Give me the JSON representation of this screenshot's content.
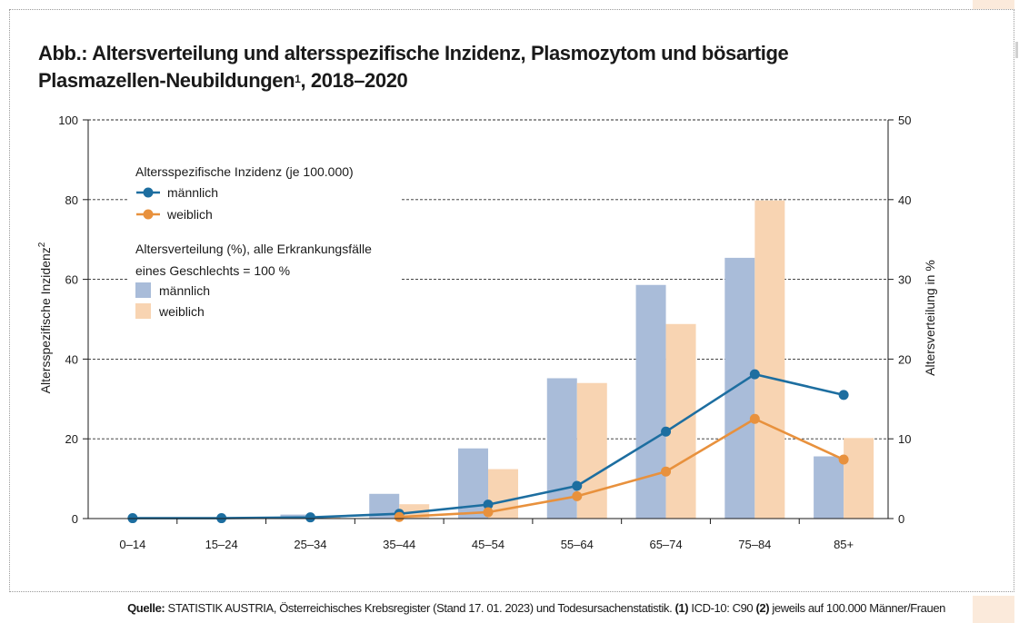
{
  "header": {
    "title_line1": "Abb.: Altersverteilung und altersspezifische Inzidenz, Plasmozytom und bösartige",
    "title_line2_a": "Plasmazellen-Neubildungen",
    "title_line2_sup": "1",
    "title_line2_b": ", 2018–2020"
  },
  "chart_data": {
    "type": "bar+line",
    "categories": [
      "0–14",
      "15–24",
      "25–34",
      "35–44",
      "45–54",
      "55–64",
      "65–74",
      "75–84",
      "85+"
    ],
    "y_left": {
      "label": "Altersspezifische Inzidenz",
      "label_sup": "2",
      "ylim": [
        0,
        100
      ],
      "ticks": [
        "0",
        "20",
        "40",
        "60",
        "80",
        "100"
      ]
    },
    "y_right": {
      "label": "Altersverteilung in %",
      "ylim": [
        0,
        50
      ],
      "ticks": [
        "0",
        "10",
        "20",
        "30",
        "40",
        "50"
      ]
    },
    "grid": "horizontal dashed",
    "legend": {
      "placement": "top-left",
      "incidence_heading": "Altersspezifische Inzidenz (je 100.000)",
      "distribution_heading_line1": "Altersverteilung (%), alle Erkrankungsfälle",
      "distribution_heading_line2": "eines Geschlechts = 100 %"
    },
    "bar_series": [
      {
        "name": "männlich",
        "axis": "right",
        "color": "#a9bcd9",
        "values": [
          0,
          0,
          0.5,
          3.1,
          8.8,
          17.6,
          29.3,
          32.7,
          7.8
        ]
      },
      {
        "name": "weiblich",
        "axis": "right",
        "color": "#f8d4b2",
        "values": [
          0,
          0,
          0.2,
          1.8,
          6.2,
          17.0,
          24.4,
          39.9,
          10.1
        ]
      }
    ],
    "line_series": [
      {
        "name": "männlich",
        "axis": "left",
        "color": "#1d6ea0",
        "values": [
          0.1,
          0.1,
          0.3,
          1.2,
          3.5,
          8.2,
          21.8,
          36.2,
          31.0
        ]
      },
      {
        "name": "weiblich",
        "axis": "left",
        "color": "#e8913d",
        "values": [
          null,
          null,
          null,
          0.4,
          1.6,
          5.6,
          11.8,
          25.0,
          14.8
        ]
      }
    ]
  },
  "footer": {
    "source_label": "Quelle:",
    "source_text": " STATISTIK AUSTRIA, Österreichisches Krebsregister (Stand 17. 01. 2023) und Todesursachenstatistik. ",
    "note1_label": "(1)",
    "note1_text": " ICD-10: C90 ",
    "note2_label": "(2)",
    "note2_text": " jeweils auf 100.000 Männer/Frauen"
  }
}
